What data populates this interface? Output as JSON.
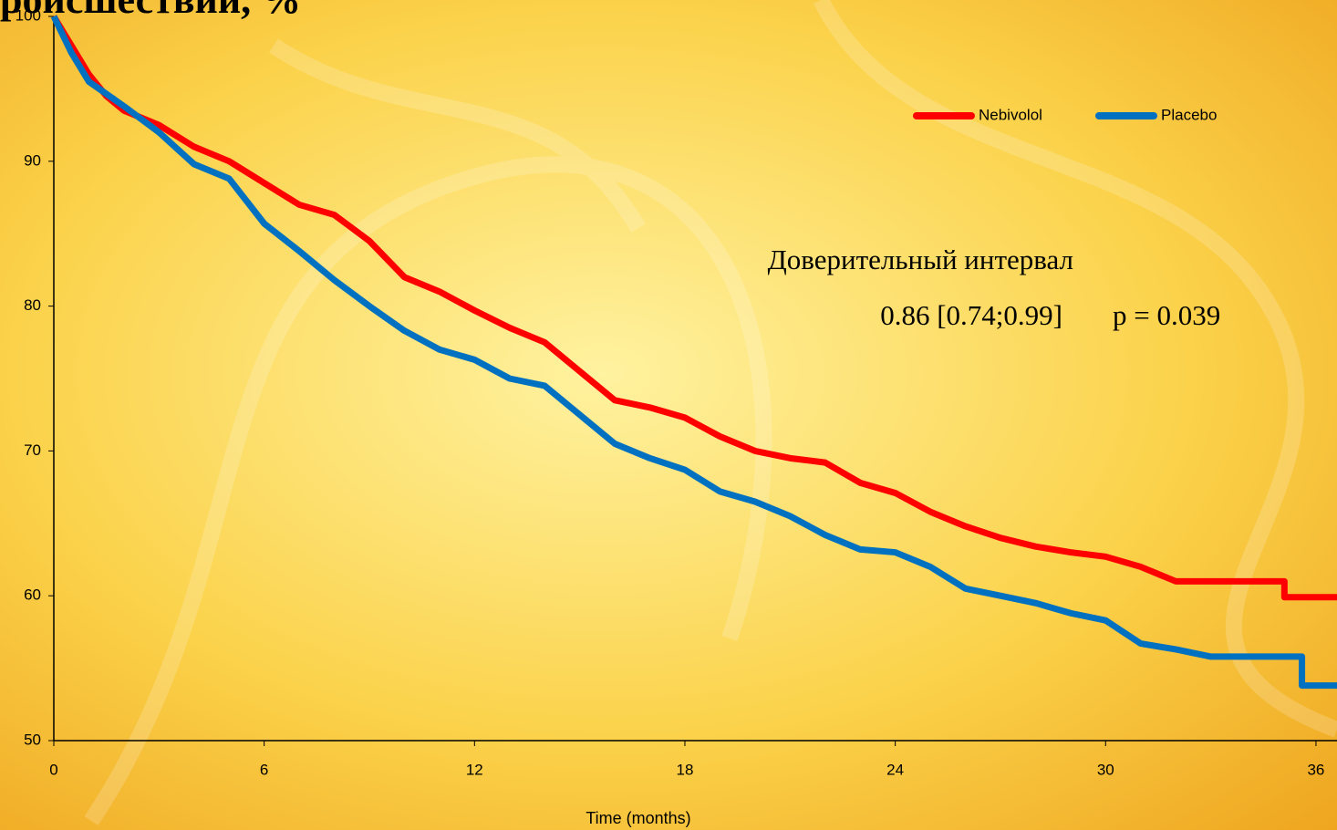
{
  "chart_data": {
    "type": "line",
    "title": "роисшествий, %",
    "xlabel": "Time   (months)",
    "annotations": [
      "Доверительный интервал",
      "0.86 [0.74;0.99]",
      "p = 0.039"
    ],
    "xlim": [
      0,
      36.6
    ],
    "xticks": [
      0,
      6,
      12,
      18,
      24,
      30,
      36
    ],
    "ylim": [
      50,
      100
    ],
    "yticks": [
      50,
      60,
      70,
      80,
      90,
      100
    ],
    "legend": "upper right",
    "series": [
      {
        "name": "Nebivolol",
        "color": "#ff0000",
        "x": [
          0,
          0.5,
          1,
          1.5,
          2,
          3,
          4,
          5,
          6,
          7,
          8,
          9,
          10,
          11,
          12,
          13,
          14,
          15,
          16,
          17,
          18,
          19,
          20,
          21,
          22,
          23,
          24,
          25,
          26,
          27,
          28,
          29,
          30,
          31,
          32,
          35.1,
          35.1,
          36.6
        ],
        "values": [
          100,
          98,
          96,
          94.5,
          93.5,
          92.5,
          91,
          90,
          88.5,
          87,
          86.3,
          84.5,
          82,
          81,
          79.7,
          78.5,
          77.5,
          75.5,
          73.5,
          73,
          72.3,
          71,
          70,
          69.5,
          69.2,
          67.8,
          67.1,
          65.8,
          64.8,
          64,
          63.4,
          63,
          62.7,
          62,
          61,
          61,
          59.9,
          59.9
        ]
      },
      {
        "name": "Placebo",
        "color": "#0070c0",
        "x": [
          0,
          0.5,
          1,
          2,
          3,
          4,
          5,
          6,
          7,
          8,
          9,
          10,
          11,
          12,
          13,
          14,
          15,
          16,
          17,
          18,
          19,
          20,
          21,
          22,
          23,
          24,
          25,
          26,
          27,
          28,
          29,
          30,
          31,
          32,
          33,
          35.6,
          35.6,
          36.6
        ],
        "values": [
          100,
          97.5,
          95.5,
          93.8,
          92,
          89.8,
          88.8,
          85.7,
          83.8,
          81.8,
          80,
          78.3,
          77,
          76.3,
          75,
          74.5,
          72.5,
          70.5,
          69.5,
          68.7,
          67.2,
          66.5,
          65.5,
          64.2,
          63.2,
          63,
          62,
          60.5,
          60,
          59.5,
          58.8,
          58.3,
          56.7,
          56.3,
          55.8,
          55.8,
          53.8,
          53.8
        ]
      }
    ]
  }
}
